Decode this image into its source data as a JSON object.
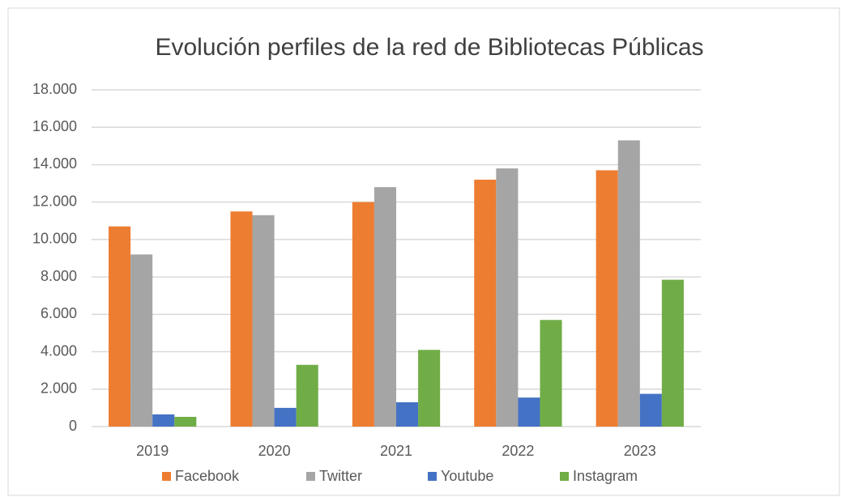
{
  "chart_data": {
    "type": "bar",
    "title": "Evolución perfiles de la red de Bibliotecas Públicas",
    "categories": [
      "2019",
      "2020",
      "2021",
      "2022",
      "2023"
    ],
    "series": [
      {
        "name": "Facebook",
        "color": "#ed7d31",
        "values": [
          10700,
          11500,
          12000,
          13200,
          13700
        ]
      },
      {
        "name": "Twitter",
        "color": "#a5a5a5",
        "values": [
          9200,
          11300,
          12800,
          13800,
          15300
        ]
      },
      {
        "name": "Youtube",
        "color": "#4472c4",
        "values": [
          650,
          1000,
          1300,
          1550,
          1750
        ]
      },
      {
        "name": "Instagram",
        "color": "#70ad47",
        "values": [
          520,
          3300,
          4100,
          5700,
          7850
        ]
      }
    ],
    "ylim": [
      0,
      18000
    ],
    "yticks": [
      0,
      {
        "value": 2000,
        "label": "2.000"
      },
      {
        "value": 4000,
        "label": "4.000"
      },
      {
        "value": 6000,
        "label": "6.000"
      },
      {
        "value": 8000,
        "label": "8.000"
      },
      {
        "value": 10000,
        "label": "10.000"
      },
      {
        "value": 12000,
        "label": "12.000"
      },
      {
        "value": 14000,
        "label": "14.000"
      },
      {
        "value": 16000,
        "label": "16.000"
      },
      {
        "value": 18000,
        "label": "18.000"
      }
    ],
    "grid": true,
    "legend": "bottom"
  }
}
